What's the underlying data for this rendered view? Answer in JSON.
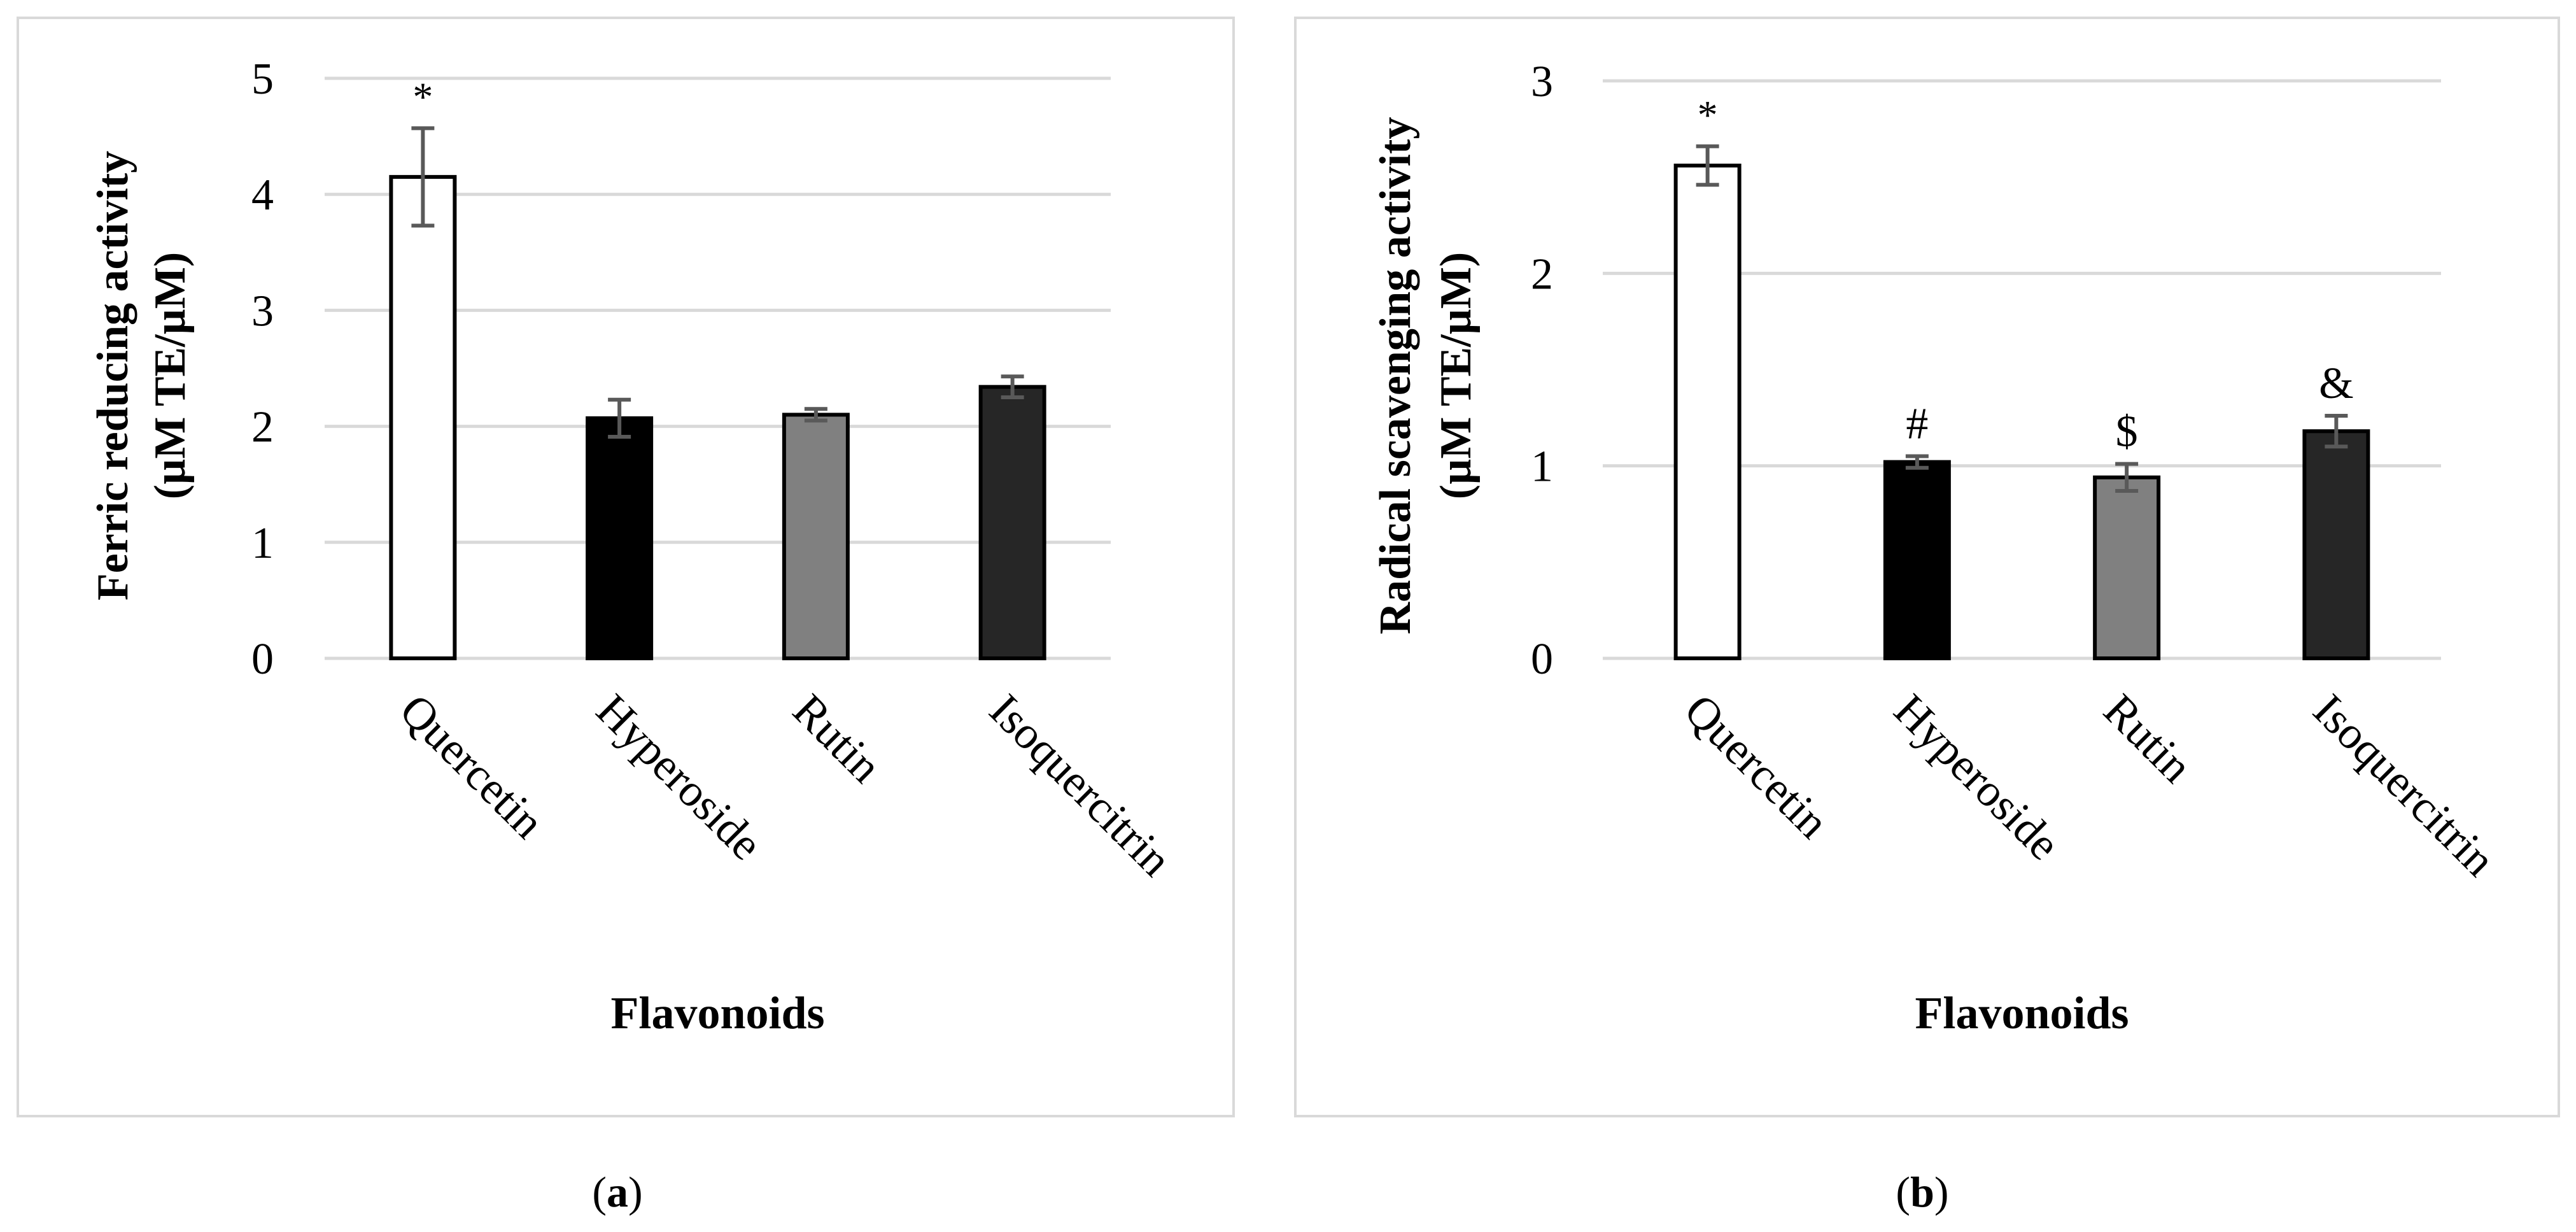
{
  "panels": [
    {
      "caption_letter": "a",
      "chart_data": {
        "type": "bar",
        "title": "",
        "xlabel": "Flavonoids",
        "ylabel_line1": "Ferric reducing activity",
        "ylabel_line2": "(µM TE/µM)",
        "ylim": [
          0,
          5
        ],
        "yticks": [
          0,
          1,
          2,
          3,
          4,
          5
        ],
        "grid": true,
        "categories": [
          "Quercetin",
          "Hyperoside",
          "Rutin",
          "Isoquercitrin"
        ],
        "values": [
          4.15,
          2.07,
          2.1,
          2.34
        ],
        "errors": [
          0.42,
          0.16,
          0.05,
          0.09
        ],
        "annotations": [
          "*",
          "",
          "",
          ""
        ],
        "bar_colors": [
          "#ffffff",
          "#000000",
          "#808080",
          "#262626"
        ]
      }
    },
    {
      "caption_letter": "b",
      "chart_data": {
        "type": "bar",
        "title": "",
        "xlabel": "Flavonoids",
        "ylabel_line1": "Radical scavenging activity",
        "ylabel_line2": "(µM TE/µM)",
        "ylim": [
          0,
          3
        ],
        "yticks": [
          0,
          1,
          2,
          3
        ],
        "grid": true,
        "categories": [
          "Quercetin",
          "Hyperoside",
          "Rutin",
          "Isoquercitrin"
        ],
        "values": [
          2.56,
          1.02,
          0.94,
          1.18
        ],
        "errors": [
          0.1,
          0.03,
          0.07,
          0.08
        ],
        "annotations": [
          "*",
          "#",
          "$",
          "&"
        ],
        "bar_colors": [
          "#ffffff",
          "#000000",
          "#808080",
          "#262626"
        ]
      }
    }
  ],
  "colors": {
    "frame": "#d9d9d9",
    "grid": "#d9d9d9",
    "bar_edge": "#000000",
    "error_bar": "#595959",
    "text": "#000000"
  }
}
